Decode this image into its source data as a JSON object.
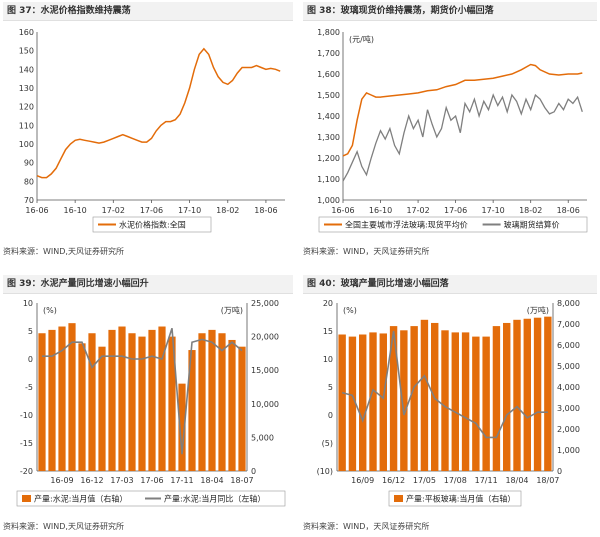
{
  "colors": {
    "orange": "#E36C0A",
    "gray": "#7F7F7F",
    "line": "#E36C0A"
  },
  "panels": [
    {
      "title": "图 37：水泥价格指数维持震荡",
      "source": "资料来源：WIND,天风证券研究所",
      "chart_data": {
        "type": "line",
        "title": "",
        "y_ticks": [
          70,
          80,
          90,
          100,
          110,
          120,
          130,
          140,
          150,
          160
        ],
        "ylim": [
          70,
          160
        ],
        "x_tick_labels": [
          "16-06",
          "16-10",
          "17-02",
          "17-06",
          "17-10",
          "18-02",
          "18-06"
        ],
        "x_tick_positions": [
          0,
          4,
          8,
          12,
          16,
          20,
          24
        ],
        "xlim": [
          0,
          26
        ],
        "series": [
          {
            "name": "水泥价格指数:全国",
            "x": [
              0,
              0.5,
              1,
              1.5,
              2,
              2.5,
              3,
              3.5,
              4,
              4.5,
              5,
              5.5,
              6,
              6.5,
              7,
              7.5,
              8,
              8.5,
              9,
              9.5,
              10,
              10.5,
              11,
              11.5,
              12,
              12.5,
              13,
              13.5,
              14,
              14.5,
              15,
              15.5,
              16,
              16.5,
              17,
              17.5,
              18,
              18.5,
              19,
              19.5,
              20,
              20.5,
              21,
              21.5,
              22,
              22.5,
              23,
              23.5,
              24,
              24.5,
              25,
              25.5
            ],
            "values": [
              83,
              82,
              82,
              84,
              87,
              92,
              97,
              100,
              102,
              102.5,
              102,
              101.5,
              101,
              100.5,
              101,
              102,
              103,
              104,
              105,
              104,
              103,
              102,
              101,
              101,
              103,
              107,
              110,
              112,
              112,
              113,
              116,
              122,
              130,
              140,
              148,
              151,
              148,
              141,
              136,
              133,
              132,
              134,
              138,
              141,
              141,
              141,
              142,
              141,
              140,
              140.5,
              140,
              139
            ]
          }
        ]
      }
    },
    {
      "title": "图 38：玻璃现货价维持震荡，期货价小幅回落",
      "source": "资料来源：WIND，天风证券研究所",
      "chart_data": {
        "type": "line",
        "title": "",
        "unit_label": "(元/吨)",
        "y_ticks": [
          1000,
          1100,
          1200,
          1300,
          1400,
          1500,
          1600,
          1700,
          1800
        ],
        "ylim": [
          1000,
          1800
        ],
        "x_tick_labels": [
          "16-06",
          "16-10",
          "17-02",
          "17-06",
          "17-10",
          "18-02",
          "18-06"
        ],
        "x_tick_positions": [
          0,
          4,
          8,
          12,
          16,
          20,
          24
        ],
        "xlim": [
          0,
          26
        ],
        "series": [
          {
            "name": "全国主要城市浮法玻璃:现货平均价",
            "x": [
              0,
              0.5,
              1,
              1.5,
              2,
              2.5,
              3,
              3.5,
              4,
              5,
              6,
              7,
              8,
              9,
              10,
              11,
              12,
              13,
              14,
              15,
              16,
              17,
              18,
              19,
              20,
              20.5,
              21,
              22,
              23,
              24,
              25,
              25.5
            ],
            "values": [
              1210,
              1220,
              1260,
              1380,
              1480,
              1510,
              1500,
              1490,
              1490,
              1495,
              1500,
              1505,
              1510,
              1520,
              1525,
              1540,
              1550,
              1570,
              1570,
              1575,
              1580,
              1590,
              1600,
              1620,
              1645,
              1640,
              1620,
              1600,
              1595,
              1600,
              1600,
              1605
            ]
          },
          {
            "name": "玻璃期货结算价",
            "x": [
              0,
              0.5,
              1,
              1.5,
              2,
              2.5,
              3,
              3.5,
              4,
              4.5,
              5,
              5.5,
              6,
              6.5,
              7,
              7.5,
              8,
              8.5,
              9,
              9.5,
              10,
              10.5,
              11,
              11.5,
              12,
              12.5,
              13,
              13.5,
              14,
              14.5,
              15,
              15.5,
              16,
              16.5,
              17,
              17.5,
              18,
              18.5,
              19,
              19.5,
              20,
              20.5,
              21,
              21.5,
              22,
              22.5,
              23,
              23.5,
              24,
              24.5,
              25,
              25.5
            ],
            "values": [
              1090,
              1130,
              1180,
              1230,
              1160,
              1120,
              1200,
              1270,
              1330,
              1290,
              1340,
              1260,
              1220,
              1320,
              1400,
              1340,
              1380,
              1300,
              1430,
              1360,
              1300,
              1340,
              1440,
              1380,
              1400,
              1320,
              1460,
              1420,
              1480,
              1400,
              1470,
              1430,
              1500,
              1450,
              1490,
              1420,
              1500,
              1470,
              1410,
              1480,
              1430,
              1500,
              1480,
              1440,
              1410,
              1420,
              1460,
              1430,
              1480,
              1460,
              1490,
              1420
            ]
          }
        ]
      }
    },
    {
      "title": "图 39：水泥产量同比增速小幅回升",
      "source": "资料来源：WIND,天风证券研究所",
      "chart_data": {
        "type": "bar",
        "title": "",
        "left_unit_label": "(%)",
        "right_unit_label": "(万吨)",
        "left_ticks": [
          -20,
          -15,
          -10,
          -5,
          0,
          5,
          10
        ],
        "ylim_left": [
          -20,
          10
        ],
        "right_ticks": [
          0,
          5000,
          10000,
          15000,
          20000,
          25000
        ],
        "ylim_right": [
          0,
          25000
        ],
        "x_tick_labels": [
          "16-09",
          "16-12",
          "17-03",
          "17-06",
          "17-11",
          "18-04",
          "18-07"
        ],
        "x_tick_indices": [
          2,
          5,
          8,
          11,
          14,
          17,
          20
        ],
        "series": [
          {
            "name": "产量:水泥:当月值（右轴）",
            "axis": "right",
            "values": [
              20500,
              21000,
              21500,
              22000,
              19000,
              20500,
              18500,
              21000,
              21500,
              20500,
              20000,
              21000,
              21500,
              20000,
              13000,
              18000,
              20500,
              21000,
              20500,
              19500,
              18500
            ]
          },
          {
            "name": "产量:水泥:当月同比（左轴）",
            "axis": "left",
            "values": [
              0.5,
              0.5,
              1.5,
              3.0,
              3.0,
              -1.5,
              0.5,
              0.5,
              0.5,
              0.0,
              0.0,
              0.5,
              0.0,
              5.5,
              -17.0,
              3.0,
              3.5,
              3.0,
              1.5,
              3.0,
              1.5
            ]
          }
        ]
      }
    },
    {
      "title": "图 40：玻璃产量同比增速小幅回落",
      "source": "资料来源：WIND，天风证券研究所",
      "chart_data": {
        "type": "bar",
        "title": "",
        "left_unit_label": "(%)",
        "right_unit_label": "(万吨)",
        "left_tick_labels": [
          "(10)",
          "(5)",
          "0",
          "5",
          "10",
          "15",
          "20"
        ],
        "left_ticks": [
          -10,
          -5,
          0,
          5,
          10,
          15,
          20
        ],
        "ylim_left": [
          -10,
          20
        ],
        "right_ticks": [
          0,
          1000,
          2000,
          3000,
          4000,
          5000,
          6000,
          7000,
          8000
        ],
        "ylim_right": [
          0,
          8000
        ],
        "x_tick_labels": [
          "16/09",
          "16/12",
          "17/05",
          "17/08",
          "17/11",
          "18/04",
          "18/07"
        ],
        "x_tick_indices": [
          2,
          5,
          8,
          11,
          14,
          17,
          20
        ],
        "series": [
          {
            "name": "产量:平板玻璃:当月值（右轴）",
            "axis": "right",
            "values": [
              6500,
              6400,
              6500,
              6600,
              6550,
              6900,
              6700,
              6900,
              7200,
              7050,
              6700,
              6600,
              6600,
              6400,
              6400,
              6900,
              7050,
              7200,
              7250,
              7300,
              7350
            ]
          },
          {
            "name": "产量:平板玻璃:当月同比（左轴）",
            "axis": "left",
            "values": [
              4.0,
              3.5,
              -1.0,
              4.5,
              3.0,
              15.0,
              0.0,
              5.0,
              7.0,
              3.0,
              1.5,
              0.5,
              -0.5,
              -1.5,
              -4.0,
              -4.0,
              0.0,
              1.5,
              -0.5,
              0.5,
              0.5
            ]
          }
        ]
      }
    }
  ]
}
